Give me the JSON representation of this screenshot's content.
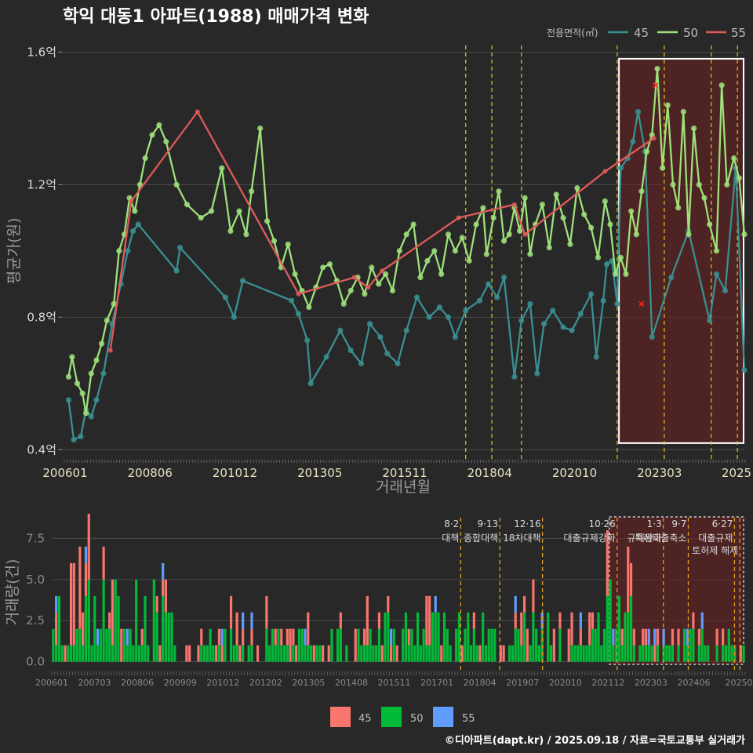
{
  "title": "학익 대동1 아파트(1988) 매매가격 변화",
  "caption": "©디아파트(dapt.kr) / 2025.09.18 / 자료=국토교통부 실거래가",
  "colors": {
    "s45": "#3a8f91",
    "s50": "#9ee07a",
    "s55": "#e05a5a",
    "b45": "#f8766d",
    "b50": "#00ba38",
    "b55": "#619cff",
    "policy": "#e6c619",
    "policy2": "#e0a020",
    "recent": "#6b1f1f"
  },
  "chart_data": [
    {
      "type": "line",
      "title": "학익 대동1 아파트(1988) 매매가격 변화",
      "xlabel": "거래년월",
      "ylabel": "평균가(원)",
      "ylim": [
        0.37,
        1.62
      ],
      "x_ticks": [
        "200601",
        "200806",
        "201012",
        "201305",
        "201511",
        "201804",
        "202010",
        "202303",
        "2025"
      ],
      "y_ticks": [
        "0.4억",
        "0.8억",
        "1.2억",
        "1.6억"
      ],
      "y_tick_values": [
        0.4,
        0.8,
        1.2,
        1.6
      ],
      "legend_title": "전용면적(㎡)",
      "legend": [
        "45",
        "50",
        "55"
      ],
      "policy_lines_t": [
        11.5,
        12.25,
        13.1,
        15.85,
        17.2,
        18.55,
        19.3
      ],
      "recent_window": {
        "from_t": 15.9,
        "to_t": 19.5,
        "ymin": 0.42,
        "ymax": 1.58
      },
      "series": [
        {
          "name": "45",
          "points": [
            [
              0.1,
              0.55
            ],
            [
              0.25,
              0.43
            ],
            [
              0.45,
              0.44
            ],
            [
              0.6,
              0.52
            ],
            [
              0.75,
              0.5
            ],
            [
              0.9,
              0.55
            ],
            [
              1.1,
              0.63
            ],
            [
              1.35,
              0.78
            ],
            [
              1.6,
              0.9
            ],
            [
              1.8,
              1.0
            ],
            [
              1.95,
              1.06
            ],
            [
              2.1,
              1.08
            ],
            [
              3.2,
              0.94
            ],
            [
              3.3,
              1.01
            ],
            [
              4.6,
              0.86
            ],
            [
              4.85,
              0.8
            ],
            [
              5.1,
              0.91
            ],
            [
              6.5,
              0.85
            ],
            [
              6.7,
              0.81
            ],
            [
              6.95,
              0.73
            ],
            [
              7.05,
              0.6
            ],
            [
              7.5,
              0.68
            ],
            [
              7.9,
              0.76
            ],
            [
              8.2,
              0.7
            ],
            [
              8.5,
              0.66
            ],
            [
              8.75,
              0.78
            ],
            [
              9.05,
              0.74
            ],
            [
              9.25,
              0.69
            ],
            [
              9.55,
              0.66
            ],
            [
              9.8,
              0.76
            ],
            [
              10.1,
              0.86
            ],
            [
              10.45,
              0.8
            ],
            [
              10.75,
              0.83
            ],
            [
              11.0,
              0.8
            ],
            [
              11.2,
              0.74
            ],
            [
              11.5,
              0.82
            ],
            [
              11.9,
              0.85
            ],
            [
              12.15,
              0.9
            ],
            [
              12.4,
              0.86
            ],
            [
              12.6,
              0.92
            ],
            [
              12.9,
              0.62
            ],
            [
              13.1,
              0.79
            ],
            [
              13.35,
              0.84
            ],
            [
              13.55,
              0.63
            ],
            [
              13.75,
              0.78
            ],
            [
              14.0,
              0.82
            ],
            [
              14.3,
              0.77
            ],
            [
              14.55,
              0.76
            ],
            [
              14.8,
              0.81
            ],
            [
              15.1,
              0.87
            ],
            [
              15.25,
              0.68
            ],
            [
              15.45,
              0.85
            ],
            [
              15.55,
              0.96
            ],
            [
              15.7,
              0.97
            ],
            [
              15.85,
              0.84
            ],
            [
              15.95,
              1.25
            ],
            [
              16.15,
              1.28
            ],
            [
              16.3,
              1.33
            ],
            [
              16.45,
              1.42
            ],
            [
              16.65,
              1.3
            ],
            [
              16.85,
              0.74
            ],
            [
              17.4,
              0.92
            ],
            [
              17.9,
              1.06
            ],
            [
              18.5,
              0.79
            ],
            [
              18.7,
              0.93
            ],
            [
              18.95,
              0.88
            ],
            [
              19.25,
              1.25
            ],
            [
              19.5,
              0.64
            ]
          ]
        },
        {
          "name": "50",
          "points": [
            [
              0.1,
              0.62
            ],
            [
              0.2,
              0.68
            ],
            [
              0.35,
              0.6
            ],
            [
              0.5,
              0.57
            ],
            [
              0.6,
              0.51
            ],
            [
              0.75,
              0.63
            ],
            [
              0.9,
              0.67
            ],
            [
              1.05,
              0.72
            ],
            [
              1.2,
              0.79
            ],
            [
              1.4,
              0.84
            ],
            [
              1.55,
              1.0
            ],
            [
              1.7,
              1.05
            ],
            [
              1.85,
              1.16
            ],
            [
              2.0,
              1.12
            ],
            [
              2.15,
              1.2
            ],
            [
              2.3,
              1.28
            ],
            [
              2.5,
              1.35
            ],
            [
              2.7,
              1.38
            ],
            [
              2.9,
              1.33
            ],
            [
              3.2,
              1.2
            ],
            [
              3.5,
              1.14
            ],
            [
              3.9,
              1.1
            ],
            [
              4.2,
              1.12
            ],
            [
              4.5,
              1.25
            ],
            [
              4.75,
              1.06
            ],
            [
              5.0,
              1.12
            ],
            [
              5.2,
              1.05
            ],
            [
              5.35,
              1.18
            ],
            [
              5.6,
              1.37
            ],
            [
              5.8,
              1.09
            ],
            [
              6.0,
              1.03
            ],
            [
              6.2,
              0.95
            ],
            [
              6.4,
              1.02
            ],
            [
              6.6,
              0.93
            ],
            [
              6.8,
              0.88
            ],
            [
              7.0,
              0.83
            ],
            [
              7.2,
              0.89
            ],
            [
              7.4,
              0.95
            ],
            [
              7.6,
              0.96
            ],
            [
              7.8,
              0.91
            ],
            [
              8.0,
              0.84
            ],
            [
              8.2,
              0.88
            ],
            [
              8.4,
              0.92
            ],
            [
              8.6,
              0.87
            ],
            [
              8.8,
              0.95
            ],
            [
              9.0,
              0.9
            ],
            [
              9.2,
              0.93
            ],
            [
              9.4,
              0.88
            ],
            [
              9.6,
              1.0
            ],
            [
              9.8,
              1.05
            ],
            [
              10.0,
              1.08
            ],
            [
              10.2,
              0.92
            ],
            [
              10.4,
              0.97
            ],
            [
              10.6,
              1.0
            ],
            [
              10.8,
              0.93
            ],
            [
              11.0,
              1.05
            ],
            [
              11.2,
              1.0
            ],
            [
              11.4,
              1.04
            ],
            [
              11.6,
              0.97
            ],
            [
              11.8,
              1.08
            ],
            [
              12.0,
              1.13
            ],
            [
              12.1,
              0.99
            ],
            [
              12.3,
              1.1
            ],
            [
              12.45,
              1.18
            ],
            [
              12.6,
              1.03
            ],
            [
              12.75,
              1.05
            ],
            [
              12.9,
              1.13
            ],
            [
              13.05,
              1.06
            ],
            [
              13.2,
              1.16
            ],
            [
              13.35,
              0.99
            ],
            [
              13.5,
              1.08
            ],
            [
              13.7,
              1.14
            ],
            [
              13.9,
              1.01
            ],
            [
              14.1,
              1.17
            ],
            [
              14.3,
              1.1
            ],
            [
              14.5,
              1.02
            ],
            [
              14.7,
              1.19
            ],
            [
              14.9,
              1.11
            ],
            [
              15.1,
              1.07
            ],
            [
              15.3,
              0.98
            ],
            [
              15.5,
              1.15
            ],
            [
              15.65,
              1.08
            ],
            [
              15.8,
              0.93
            ],
            [
              15.95,
              0.98
            ],
            [
              16.1,
              0.93
            ],
            [
              16.25,
              1.12
            ],
            [
              16.4,
              1.05
            ],
            [
              16.55,
              1.18
            ],
            [
              16.7,
              1.3
            ],
            [
              16.85,
              1.35
            ],
            [
              17.0,
              1.55
            ],
            [
              17.15,
              1.25
            ],
            [
              17.3,
              1.44
            ],
            [
              17.45,
              1.2
            ],
            [
              17.6,
              1.13
            ],
            [
              17.75,
              1.42
            ],
            [
              17.9,
              1.05
            ],
            [
              18.05,
              1.37
            ],
            [
              18.2,
              1.2
            ],
            [
              18.35,
              1.16
            ],
            [
              18.5,
              1.08
            ],
            [
              18.7,
              1.0
            ],
            [
              18.85,
              1.5
            ],
            [
              19.0,
              1.2
            ],
            [
              19.2,
              1.28
            ],
            [
              19.35,
              1.22
            ],
            [
              19.5,
              1.05
            ]
          ]
        },
        {
          "name": "55",
          "points": [
            [
              1.3,
              0.7
            ],
            [
              1.9,
              1.15
            ],
            [
              3.8,
              1.42
            ],
            [
              6.7,
              0.87
            ],
            [
              8.3,
              0.92
            ],
            [
              8.7,
              0.89
            ],
            [
              9.1,
              0.94
            ],
            [
              11.3,
              1.1
            ],
            [
              12.9,
              1.14
            ],
            [
              13.2,
              1.05
            ],
            [
              15.5,
              1.24
            ],
            [
              16.9,
              1.34
            ]
          ],
          "marks_x": [
            [
              16.95,
              1.5
            ],
            [
              16.55,
              0.84
            ]
          ]
        }
      ]
    },
    {
      "type": "bar",
      "ylabel": "거래량(건)",
      "ylim": [
        -0.4,
        9.0
      ],
      "x_ticks": [
        "200601",
        "200703",
        "200806",
        "200909",
        "201012",
        "201202",
        "201305",
        "201408",
        "201511",
        "201701",
        "201804",
        "201907",
        "202010",
        "202112",
        "202303",
        "202406",
        "20250"
      ],
      "y_ticks": [
        "0.0",
        "2.5",
        "5.0",
        "7.5"
      ],
      "y_tick_values": [
        0.0,
        2.5,
        5.0,
        7.5
      ],
      "legend": [
        "45",
        "50",
        "55"
      ],
      "policies": [
        {
          "t": 11.5,
          "date": "8·2",
          "label": "대책"
        },
        {
          "t": 12.6,
          "date": "9·13",
          "label": "종합대책"
        },
        {
          "t": 13.8,
          "date": "12·16",
          "label": "18차대책"
        },
        {
          "t": 15.9,
          "date": "10·26",
          "label": "대출규제강화"
        },
        {
          "t": 17.2,
          "date": "1·3",
          "label": "규제완화"
        },
        {
          "t": 17.9,
          "date": "9·7",
          "label": "특례대출축소"
        },
        {
          "t": 19.2,
          "date": "6·27",
          "label": "대출규제"
        },
        {
          "t": 19.35,
          "date": "",
          "label": "토허제 해제"
        }
      ],
      "recent_window": {
        "from_t": 15.9,
        "to_t": 19.5
      }
    }
  ]
}
